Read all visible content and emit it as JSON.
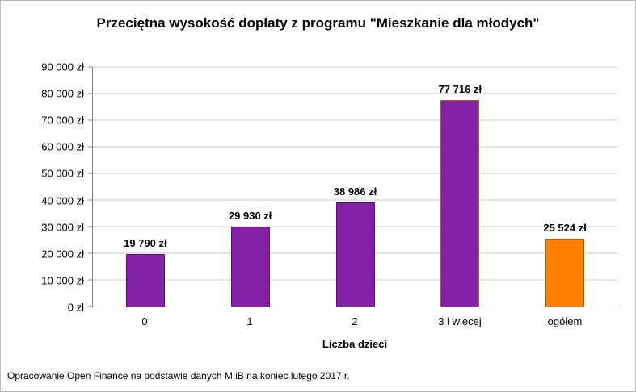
{
  "title": "Przeciętna wysokość dopłaty z programu \"Mieszkanie dla młodych\"",
  "footer": "Opracowanie Open Finance na podstawie danych MIiB na koniec lutego 2017 r.",
  "chart_data": {
    "type": "bar",
    "title": "Przeciętna wysokość dopłaty z programu \"Mieszkanie dla młodych\"",
    "categories": [
      "0",
      "1",
      "2",
      "3 i więcej",
      "ogółem"
    ],
    "values": [
      19790,
      29930,
      38986,
      77716,
      25524
    ],
    "value_labels": [
      "19 790 zł",
      "29 930 zł",
      "38 986 zł",
      "77 716 zł",
      "25 524 zł"
    ],
    "bar_colors": [
      "#8321a7",
      "#8321a7",
      "#8321a7",
      "#8321a7",
      "#ff8000"
    ],
    "bar_border_colors": [
      "#571470",
      "#571470",
      "#571470",
      "#b85c00",
      "#b85c00"
    ],
    "xlabel": "Liczba dzieci",
    "ylabel": "",
    "ylim": [
      0,
      90000
    ],
    "ytick_step": 10000,
    "ytick_labels": [
      "0 zł",
      "10 000 zł",
      "20 000 zł",
      "30 000 zł",
      "40 000 zł",
      "50 000 zł",
      "60 000 zł",
      "70 000 zł",
      "80 000 zł",
      "90 000 zł"
    ],
    "grid": true,
    "legend": "none"
  },
  "colors": {
    "purple": "#8321a7",
    "orange": "#ff8000",
    "gridline": "#c9c9c9",
    "axis": "#808080",
    "text": "#000000",
    "background": "#ffffff"
  }
}
